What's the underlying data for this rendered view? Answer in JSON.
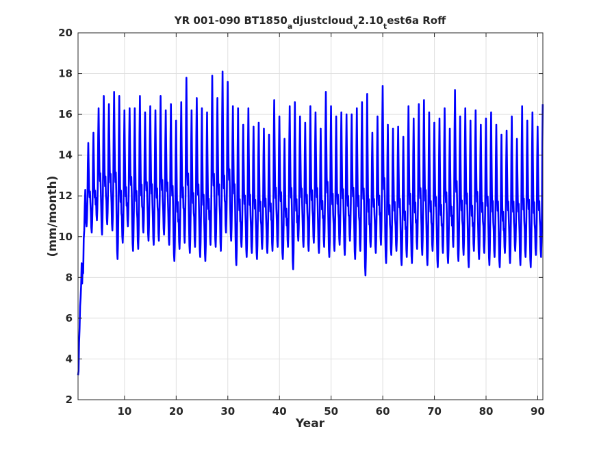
{
  "chart_data": {
    "type": "line",
    "title": {
      "parts": [
        {
          "text": "YR 001-090 BT1850",
          "sub": false
        },
        {
          "text": "a",
          "sub": true
        },
        {
          "text": "djustcloud",
          "sub": false
        },
        {
          "text": "v",
          "sub": true
        },
        {
          "text": "2.10",
          "sub": false
        },
        {
          "text": "t",
          "sub": true
        },
        {
          "text": "est6a Roff",
          "sub": false
        }
      ]
    },
    "xlabel": "Year",
    "ylabel": "(mm/month)",
    "xlim": [
      1,
      91
    ],
    "ylim": [
      2,
      20
    ],
    "xticks": [
      10,
      20,
      30,
      40,
      50,
      60,
      70,
      80,
      90
    ],
    "yticks": [
      2,
      4,
      6,
      8,
      10,
      12,
      14,
      16,
      18,
      20
    ],
    "grid": true,
    "line_color": "#0000ff",
    "series": [
      {
        "spinup": [
          [
            1.0,
            3.2
          ],
          [
            1.1,
            3.4
          ],
          [
            1.2,
            4.8
          ],
          [
            1.3,
            5.5
          ],
          [
            1.4,
            6.6
          ],
          [
            1.5,
            7.0
          ],
          [
            1.6,
            7.6
          ],
          [
            1.7,
            8.7
          ],
          [
            1.8,
            7.7
          ],
          [
            1.9,
            8.6
          ],
          [
            2.0,
            8.2
          ],
          [
            2.1,
            9.9
          ],
          [
            2.2,
            10.3
          ],
          [
            2.3,
            11.5
          ],
          [
            2.4,
            12.3
          ]
        ],
        "annual_peak": [
          14.6,
          15.1,
          16.3,
          16.9,
          16.5,
          17.1,
          16.9,
          16.2,
          16.3,
          16.3,
          16.9,
          16.1,
          16.4,
          16.2,
          16.9,
          16.2,
          16.5,
          15.7,
          16.6,
          17.8,
          16.2,
          16.8,
          16.3,
          16.1,
          17.9,
          16.8,
          18.1,
          17.6,
          16.4,
          16.3,
          15.5,
          16.3,
          15.4,
          15.6,
          15.3,
          15.0,
          16.7,
          15.9,
          14.8,
          16.4,
          16.6,
          15.9,
          15.6,
          16.4,
          16.1,
          15.3,
          17.1,
          16.4,
          15.9,
          16.1,
          16.0,
          16.0,
          16.3,
          16.6,
          17.0,
          15.1,
          15.9,
          17.4,
          15.5,
          15.3,
          15.4,
          14.9,
          16.4,
          15.8,
          16.5,
          16.7,
          16.1,
          15.6,
          15.8,
          16.3,
          15.3,
          17.2,
          15.9,
          16.3,
          15.7,
          16.2,
          15.5,
          15.8,
          16.1,
          15.5,
          15.0,
          15.2,
          15.9,
          14.8,
          16.4,
          15.7,
          16.1,
          15.4,
          16.5
        ],
        "annual_trough": [
          10.5,
          10.2,
          10.8,
          10.1,
          10.6,
          10.3,
          8.9,
          9.7,
          10.5,
          9.3,
          9.4,
          10.2,
          9.8,
          9.6,
          9.8,
          10.1,
          9.6,
          8.8,
          9.4,
          9.7,
          9.2,
          9.5,
          9.0,
          8.8,
          9.6,
          9.5,
          9.3,
          10.2,
          9.8,
          8.6,
          9.5,
          9.0,
          9.2,
          8.9,
          9.4,
          9.2,
          9.3,
          9.5,
          8.9,
          9.5,
          8.4,
          9.8,
          9.5,
          9.3,
          9.7,
          9.2,
          9.5,
          9.0,
          9.3,
          9.6,
          9.1,
          9.8,
          8.9,
          9.3,
          8.1,
          9.5,
          9.2,
          9.6,
          8.7,
          9.1,
          9.3,
          8.6,
          9.0,
          8.7,
          9.4,
          9.1,
          8.6,
          9.3,
          8.5,
          9.2,
          8.7,
          9.5,
          8.8,
          9.1,
          8.5,
          9.3,
          8.9,
          9.2,
          8.6,
          9.0,
          8.5,
          9.2,
          8.7,
          9.3,
          8.6,
          9.0,
          8.5,
          9.1,
          9.0
        ],
        "annual_cycle_shape": [
          0.2,
          0.05,
          0.0,
          0.1,
          0.3,
          0.75,
          1.0,
          0.7,
          0.45,
          0.35,
          0.42,
          0.28
        ]
      }
    ]
  }
}
